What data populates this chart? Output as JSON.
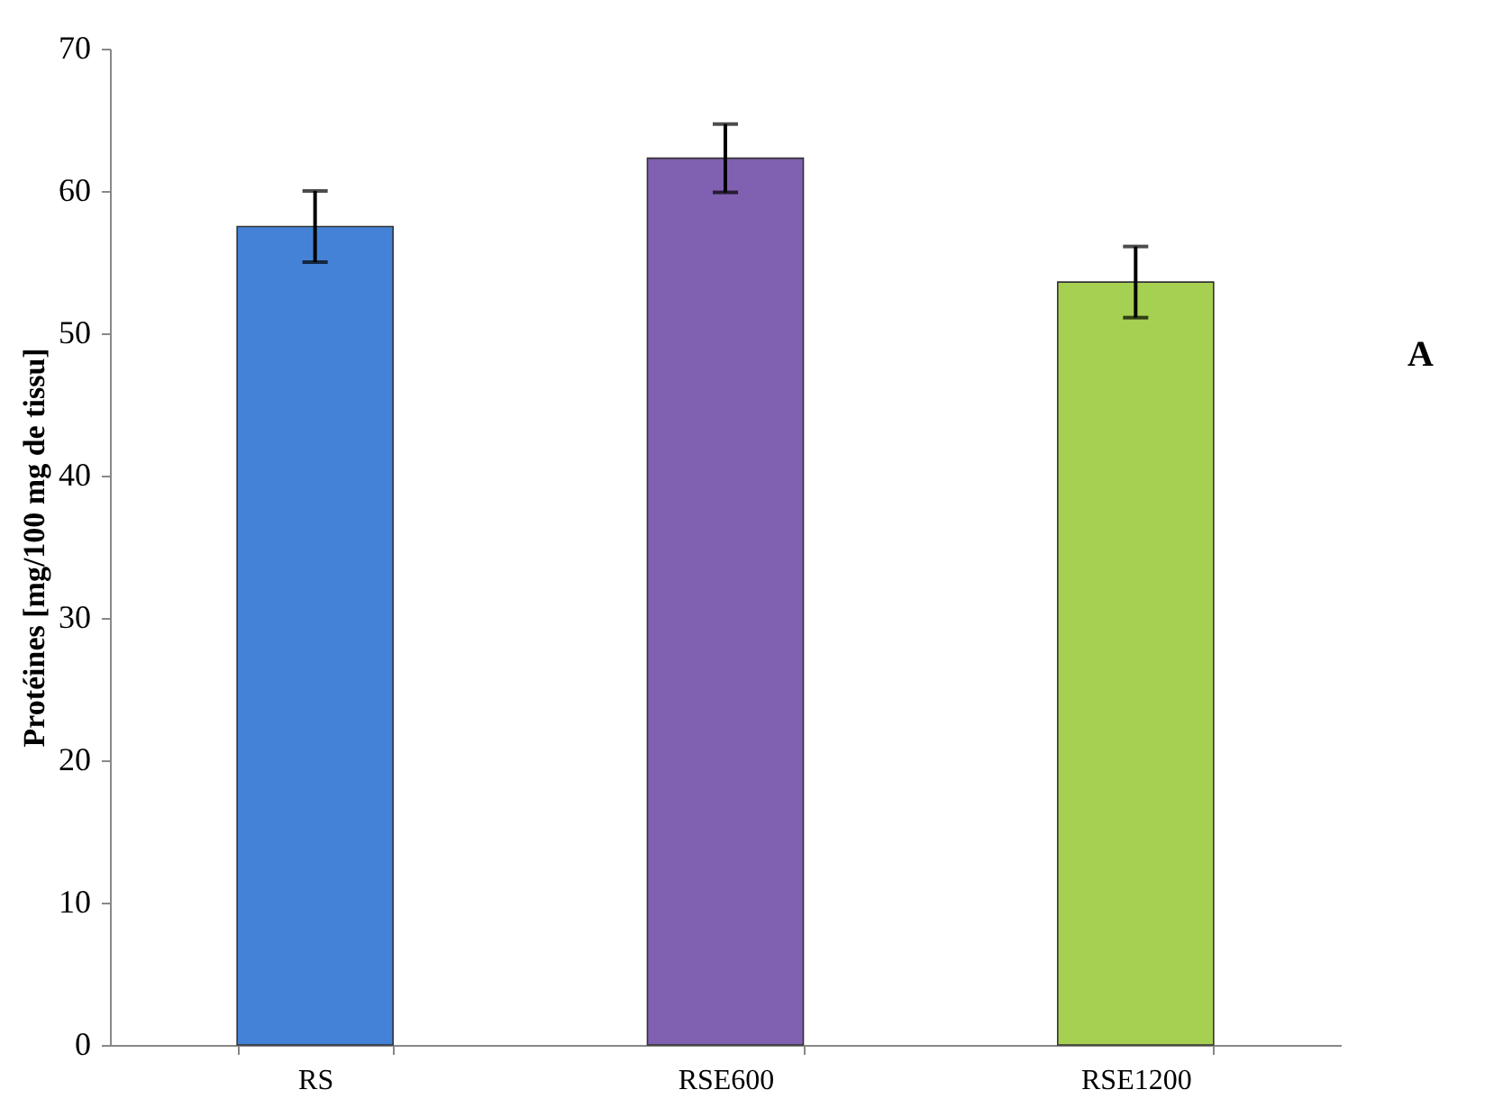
{
  "chart_data": {
    "type": "bar",
    "ylabel": "Protéines [mg/100 mg de tissu]",
    "categories": [
      "RS",
      "RSE600",
      "RSE1200"
    ],
    "values": [
      57.5,
      62.3,
      53.6
    ],
    "colors": [
      "#4382d6",
      "#8060b0",
      "#a6d052"
    ],
    "errors": [
      2.5,
      2.4,
      2.5
    ],
    "ylim": [
      0,
      70
    ],
    "yticks": [
      0,
      10,
      20,
      30,
      40,
      50,
      60,
      70
    ],
    "grid": false,
    "annotations": [
      "A"
    ]
  }
}
